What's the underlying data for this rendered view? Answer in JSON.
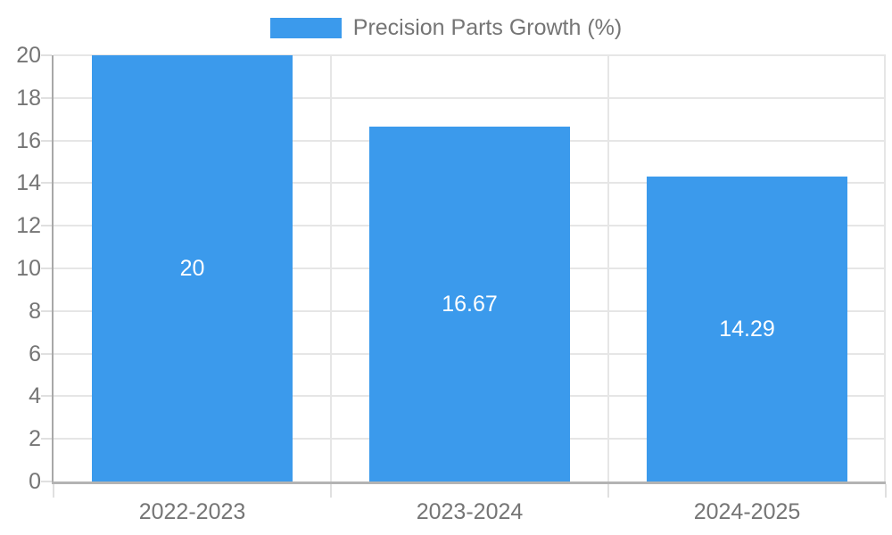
{
  "legend": {
    "label": "Precision Parts Growth (%)"
  },
  "chart_data": {
    "type": "bar",
    "title": "Precision Parts Growth (%)",
    "categories": [
      "2022-2023",
      "2023-2024",
      "2024-2025"
    ],
    "values": [
      20,
      16.67,
      14.29
    ],
    "bar_labels": [
      "20",
      "16.67",
      "14.29"
    ],
    "ylim": [
      0,
      20
    ],
    "ytick_step": 2,
    "ytick_labels": [
      "0",
      "2",
      "4",
      "6",
      "8",
      "10",
      "12",
      "14",
      "16",
      "18",
      "20"
    ],
    "grid": true,
    "legend_position": "top",
    "colors": {
      "bar": "#3B9AEC",
      "grid": "#E6E6E6",
      "tick": "#E0E0E0",
      "axis_y": "#A8A8A8",
      "axis_x": "#B3B3B3",
      "text": "#757575",
      "bar_label": "#FFFFFF",
      "background": "#FFFFFF"
    }
  }
}
